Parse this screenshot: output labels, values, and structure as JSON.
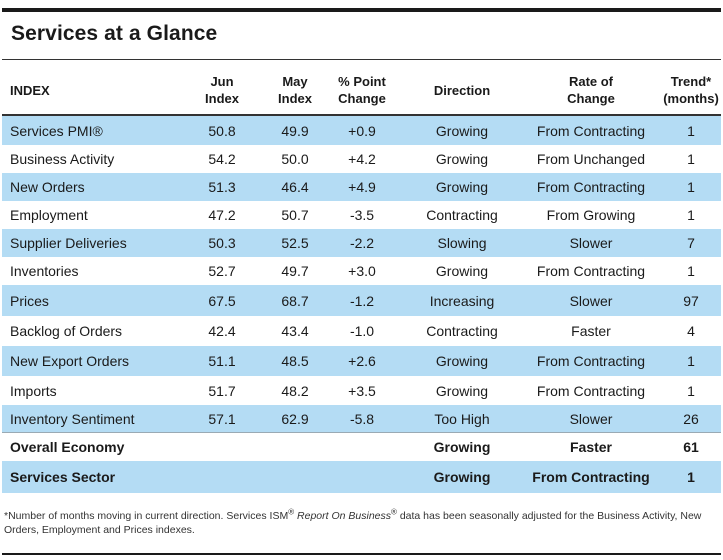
{
  "title": "Services at a Glance",
  "columns": {
    "index": "INDEX",
    "jun": [
      "Jun",
      "Index"
    ],
    "may": [
      "May",
      "Index"
    ],
    "change": [
      "% Point",
      "Change"
    ],
    "direction": "Direction",
    "rate": [
      "Rate of",
      "Change"
    ],
    "trend": [
      "Trend*",
      "(months)"
    ]
  },
  "rows": [
    {
      "name": "Services PMI®",
      "jun": "50.8",
      "may": "49.9",
      "change": "+0.9",
      "direction": "Growing",
      "rate": "From Contracting",
      "trend": "1"
    },
    {
      "name": "Business Activity",
      "jun": "54.2",
      "may": "50.0",
      "change": "+4.2",
      "direction": "Growing",
      "rate": "From Unchanged",
      "trend": "1"
    },
    {
      "name": "New Orders",
      "jun": "51.3",
      "may": "46.4",
      "change": "+4.9",
      "direction": "Growing",
      "rate": "From Contracting",
      "trend": "1"
    },
    {
      "name": "Employment",
      "jun": "47.2",
      "may": "50.7",
      "change": "-3.5",
      "direction": "Contracting",
      "rate": "From Growing",
      "trend": "1"
    },
    {
      "name": "Supplier Deliveries",
      "jun": "50.3",
      "may": "52.5",
      "change": "-2.2",
      "direction": "Slowing",
      "rate": "Slower",
      "trend": "7"
    },
    {
      "name": "Inventories",
      "jun": "52.7",
      "may": "49.7",
      "change": "+3.0",
      "direction": "Growing",
      "rate": "From Contracting",
      "trend": "1"
    },
    {
      "name": "Prices",
      "jun": "67.5",
      "may": "68.7",
      "change": "-1.2",
      "direction": "Increasing",
      "rate": "Slower",
      "trend": "97"
    },
    {
      "name": "Backlog of Orders",
      "jun": "42.4",
      "may": "43.4",
      "change": "-1.0",
      "direction": "Contracting",
      "rate": "Faster",
      "trend": "4"
    },
    {
      "name": "New Export Orders",
      "jun": "51.1",
      "may": "48.5",
      "change": "+2.6",
      "direction": "Growing",
      "rate": "From Contracting",
      "trend": "1"
    },
    {
      "name": "Imports",
      "jun": "51.7",
      "may": "48.2",
      "change": "+3.5",
      "direction": "Growing",
      "rate": "From Contracting",
      "trend": "1"
    },
    {
      "name": "Inventory Sentiment",
      "jun": "57.1",
      "may": "62.9",
      "change": "-5.8",
      "direction": "Too High",
      "rate": "Slower",
      "trend": "26"
    }
  ],
  "summary": [
    {
      "name": "Overall Economy",
      "direction": "Growing",
      "rate": "Faster",
      "trend": "61"
    },
    {
      "name": "Services Sector",
      "direction": "Growing",
      "rate": "From Contracting",
      "trend": "1"
    }
  ],
  "footnote": {
    "part1": "*Number of months moving in current direction. Services ISM",
    "sup1": "®",
    "italic": "Report On Business",
    "sup2": "®",
    "part2": " data has been seasonally adjusted for the Business Activity, New Orders, Employment and Prices indexes."
  }
}
